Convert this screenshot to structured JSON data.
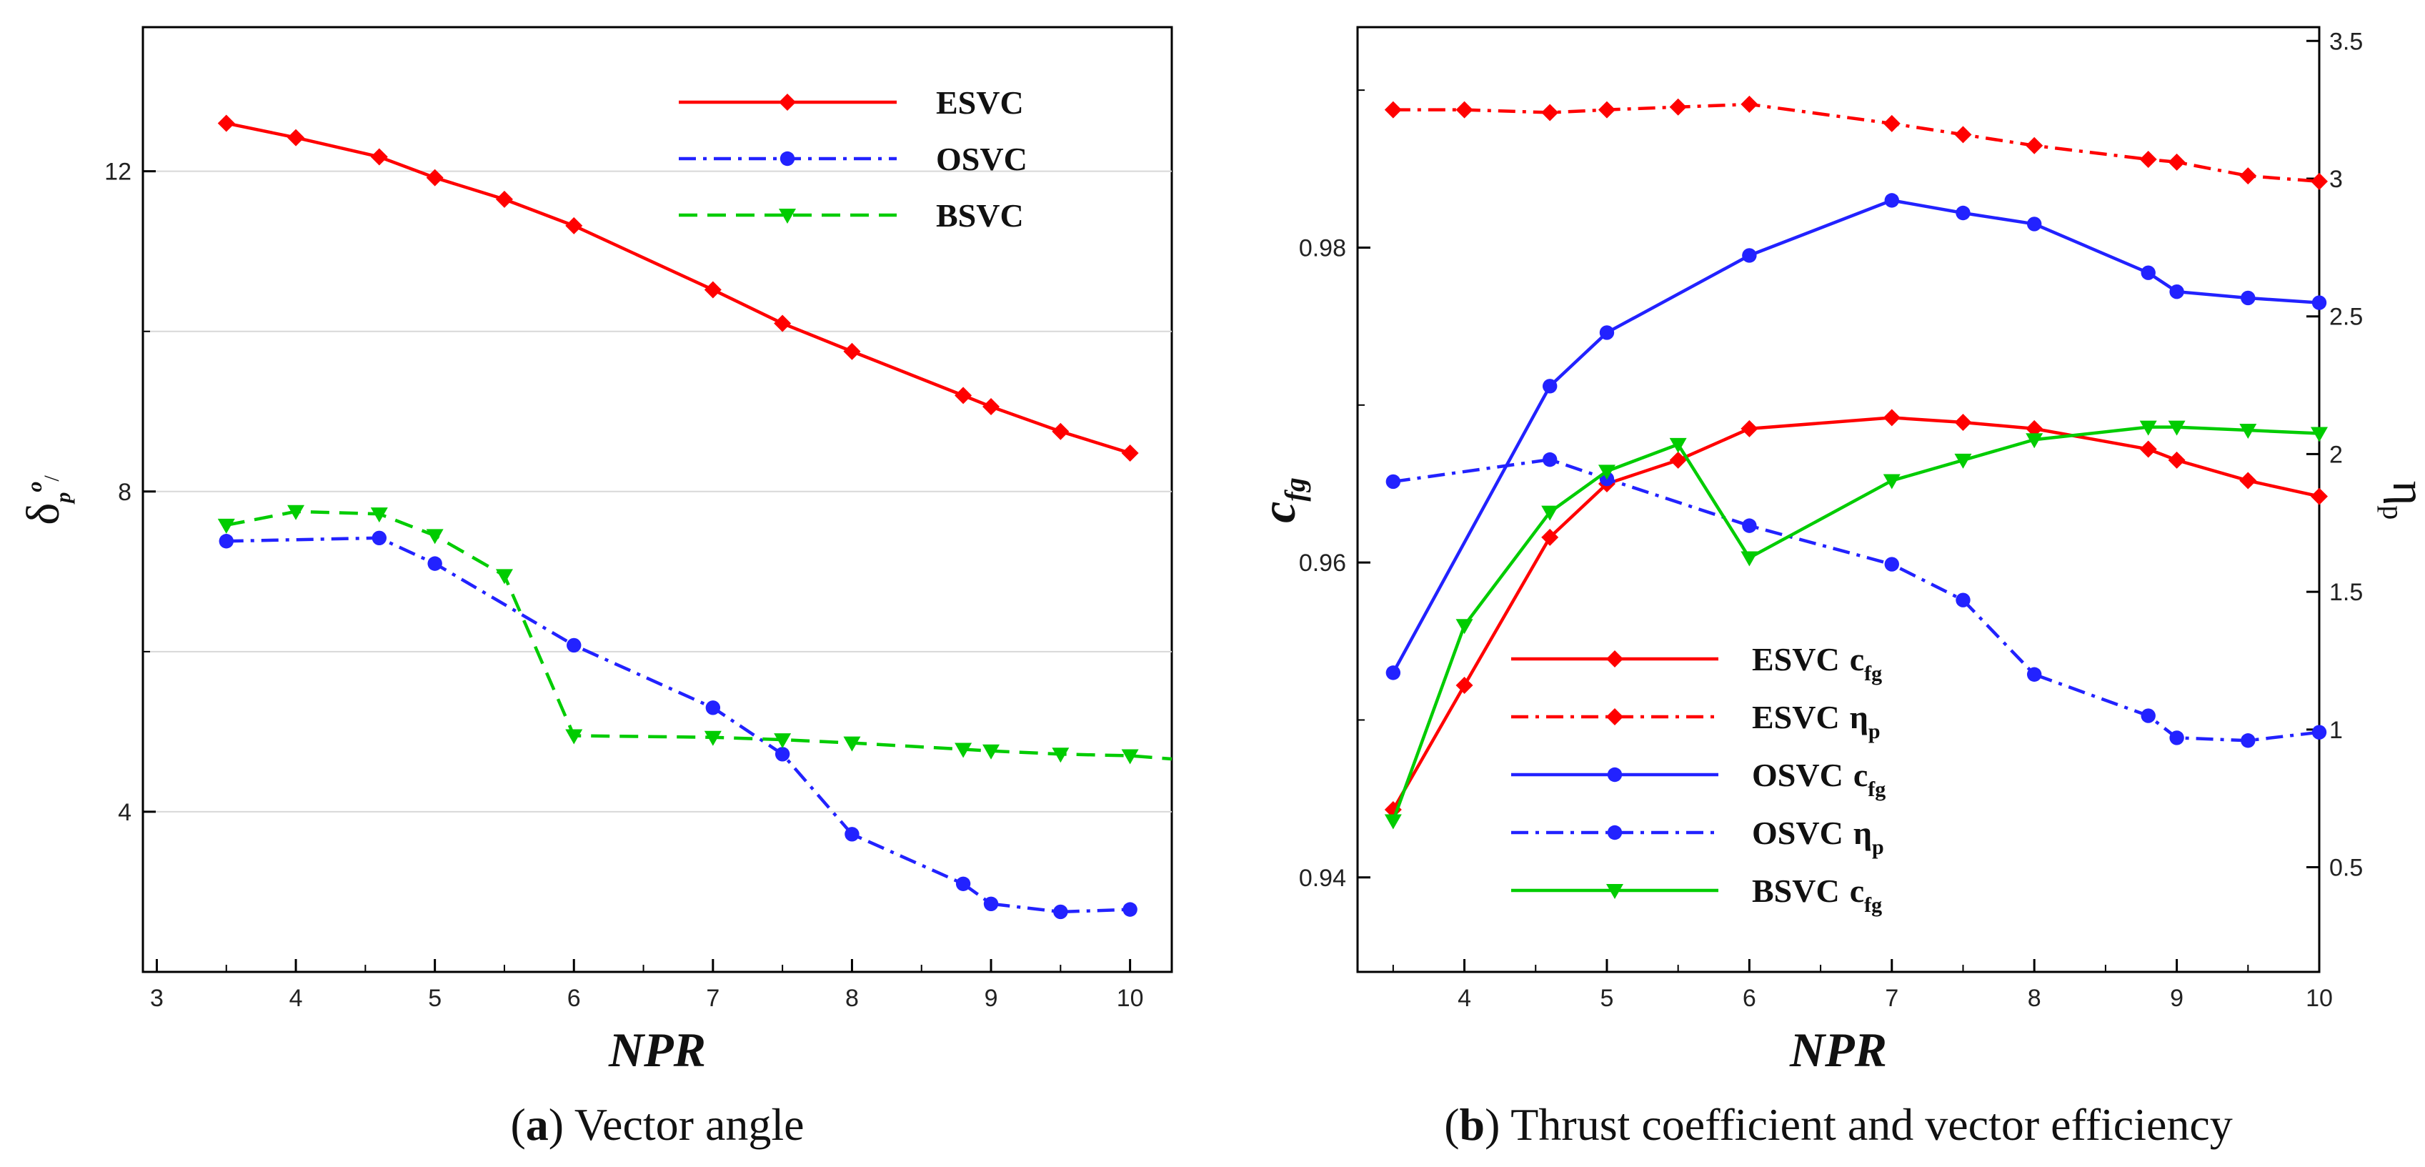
{
  "chart_data": [
    {
      "type": "line",
      "panel": "a",
      "caption_letter": "a",
      "caption_text": "Vector angle",
      "xlabel": "NPR",
      "ylabel_main": "δ",
      "ylabel_sub": "p",
      "ylabel_sup": "o",
      "ylabel_slash": "/",
      "xlim": [
        2.9,
        10.3
      ],
      "ylim": [
        2.0,
        13.8
      ],
      "xticks": [
        "3",
        "4",
        "5",
        "6",
        "7",
        "8",
        "9",
        "10"
      ],
      "yticks": [
        "4",
        "8",
        "12"
      ],
      "series": [
        {
          "name": "ESVC",
          "color": "#ff0000",
          "dash": "solid",
          "marker": "diamond",
          "x": [
            3.5,
            4,
            4.6,
            5,
            5.5,
            6,
            7,
            7.5,
            8,
            8.8,
            9,
            9.5,
            10
          ],
          "y": [
            12.6,
            12.42,
            12.18,
            11.92,
            11.65,
            11.32,
            10.52,
            10.1,
            9.75,
            9.2,
            9.06,
            8.75,
            8.48
          ]
        },
        {
          "name": "OSVC",
          "color": "#2222ff",
          "dash": "dashdot",
          "marker": "circle",
          "x": [
            3.5,
            4.6,
            5,
            6,
            7,
            7.5,
            8,
            8.8,
            9,
            9.5,
            10
          ],
          "y": [
            7.38,
            7.42,
            7.1,
            6.08,
            5.3,
            4.72,
            3.72,
            3.1,
            2.85,
            2.75,
            2.78
          ]
        },
        {
          "name": "BSVC",
          "color": "#00cc00",
          "dash": "dashed",
          "marker": "triangle-down",
          "x": [
            3.5,
            4,
            4.6,
            5,
            5.5,
            6,
            7,
            7.5,
            8,
            8.8,
            9,
            9.5,
            10,
            10.3
          ],
          "y": [
            7.58,
            7.75,
            7.72,
            7.45,
            6.95,
            4.95,
            4.93,
            4.9,
            4.86,
            4.78,
            4.76,
            4.72,
            4.7,
            4.66
          ]
        }
      ]
    },
    {
      "type": "line",
      "panel": "b",
      "caption_letter": "b",
      "caption_text": "Thrust coefficient and vector efficiency",
      "xlabel": "NPR",
      "ylabel_left_main": "c",
      "ylabel_left_sub": "fg",
      "ylabel_right_main": "η",
      "ylabel_right_sub": "p",
      "xlim": [
        3.25,
        10.0
      ],
      "ylim_left": [
        0.934,
        0.994
      ],
      "ylim_right": [
        0.12,
        3.55
      ],
      "xticks": [
        "4",
        "5",
        "6",
        "7",
        "8",
        "9",
        "10"
      ],
      "yticks_left": [
        "0.94",
        "0.96",
        "0.98"
      ],
      "yticks_right": [
        "0.5",
        "1",
        "1.5",
        "2",
        "2.5",
        "3",
        "3.5"
      ],
      "series": [
        {
          "name": "ESVC",
          "sub": "fg",
          "label_sym": "c",
          "axis": "left",
          "color": "#ff0000",
          "dash": "solid",
          "marker": "diamond",
          "x": [
            3.5,
            4,
            4.6,
            5,
            5.5,
            6,
            7,
            7.5,
            8,
            8.8,
            9,
            9.5,
            10
          ],
          "y": [
            0.9443,
            0.9522,
            0.9616,
            0.965,
            0.9665,
            0.9685,
            0.9692,
            0.9689,
            0.9685,
            0.9672,
            0.9665,
            0.9652,
            0.9642
          ]
        },
        {
          "name": "ESVC",
          "sub": "p",
          "label_sym": "η",
          "axis": "right",
          "color": "#ff0000",
          "dash": "dashdot",
          "marker": "diamond",
          "x": [
            3.5,
            4,
            4.6,
            5,
            5.5,
            6,
            7,
            7.5,
            8,
            8.8,
            9,
            9.5,
            10
          ],
          "y": [
            3.25,
            3.25,
            3.24,
            3.25,
            3.26,
            3.27,
            3.2,
            3.16,
            3.12,
            3.07,
            3.06,
            3.01,
            2.99
          ]
        },
        {
          "name": "OSVC",
          "sub": "fg",
          "label_sym": "c",
          "axis": "left",
          "color": "#2222ff",
          "dash": "solid",
          "marker": "circle",
          "x": [
            3.5,
            4.6,
            5,
            6,
            7,
            7.5,
            8,
            8.8,
            9,
            9.5,
            10
          ],
          "y": [
            0.953,
            0.9712,
            0.9746,
            0.9795,
            0.983,
            0.9822,
            0.9815,
            0.9784,
            0.9772,
            0.9768,
            0.9765
          ]
        },
        {
          "name": "OSVC",
          "sub": "p",
          "label_sym": "η",
          "axis": "right",
          "color": "#2222ff",
          "dash": "dashdot",
          "marker": "circle",
          "x": [
            3.5,
            4.6,
            5,
            6,
            7,
            7.5,
            8,
            8.8,
            9,
            9.5,
            10
          ],
          "y": [
            1.9,
            1.98,
            1.91,
            1.74,
            1.6,
            1.47,
            1.2,
            1.05,
            0.97,
            0.96,
            0.99
          ]
        },
        {
          "name": "BSVC",
          "sub": "fg",
          "label_sym": "c",
          "axis": "left",
          "color": "#00cc00",
          "dash": "solid",
          "marker": "triangle-down",
          "x": [
            3.5,
            4,
            4.6,
            5,
            5.5,
            6,
            7,
            7.5,
            8,
            8.8,
            9,
            9.5,
            10
          ],
          "y": [
            0.9436,
            0.956,
            0.9632,
            0.9658,
            0.9675,
            0.9603,
            0.9652,
            0.9665,
            0.9678,
            0.9686,
            0.9686,
            0.9684,
            0.9682
          ]
        }
      ]
    }
  ]
}
